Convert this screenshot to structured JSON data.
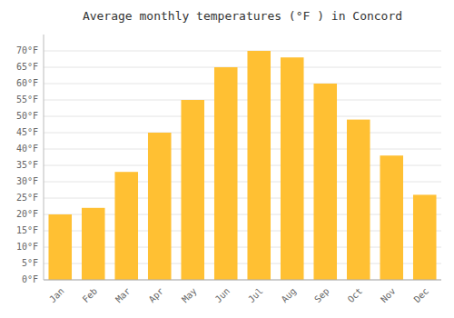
{
  "chart_data": {
    "type": "bar",
    "title": "Average monthly temperatures (°F ) in Concord",
    "categories": [
      "Jan",
      "Feb",
      "Mar",
      "Apr",
      "May",
      "Jun",
      "Jul",
      "Aug",
      "Sep",
      "Oct",
      "Nov",
      "Dec"
    ],
    "values": [
      20,
      22,
      33,
      45,
      55,
      65,
      70,
      68,
      60,
      49,
      38,
      26
    ],
    "color": "#FFC033",
    "ylim": [
      0,
      75
    ],
    "yticks": [
      {
        "value": 0,
        "label": "0°F"
      },
      {
        "value": 5,
        "label": "5°F"
      },
      {
        "value": 10,
        "label": "10°F"
      },
      {
        "value": 15,
        "label": "15°F"
      },
      {
        "value": 20,
        "label": "20°F"
      },
      {
        "value": 25,
        "label": "25°F"
      },
      {
        "value": 30,
        "label": "30°F"
      },
      {
        "value": 35,
        "label": "35°F"
      },
      {
        "value": 40,
        "label": "40°F"
      },
      {
        "value": 45,
        "label": "45°F"
      },
      {
        "value": 50,
        "label": "50°F"
      },
      {
        "value": 55,
        "label": "55°F"
      },
      {
        "value": 60,
        "label": "60°F"
      },
      {
        "value": 65,
        "label": "65°F"
      },
      {
        "value": 70,
        "label": "70°F"
      }
    ],
    "grid": true
  }
}
